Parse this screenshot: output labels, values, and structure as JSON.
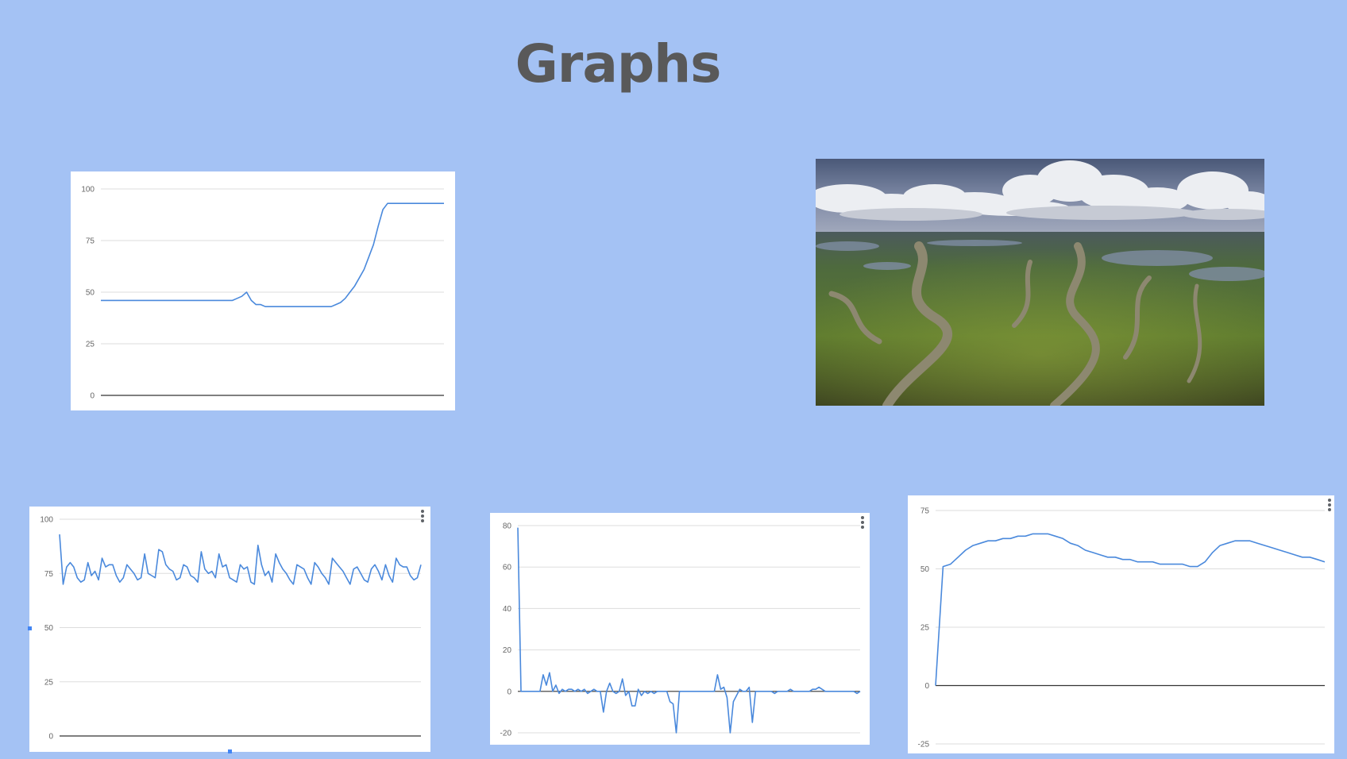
{
  "slide": {
    "title": "Graphs",
    "background": "#a4c2f4",
    "title_color": "#595959"
  },
  "chart_style": {
    "line_color": "#4a89dc",
    "grid_color": "#dddddd",
    "axis_color": "#333333",
    "tick_color": "#666666"
  },
  "chart_data": [
    {
      "type": "line",
      "ylim": [
        0,
        100
      ],
      "yticks": [
        0,
        25,
        50,
        75,
        100
      ],
      "has_menu": false,
      "series": [
        {
          "values": [
            46,
            46,
            46,
            46,
            46,
            46,
            46,
            46,
            46,
            46,
            46,
            46,
            46,
            46,
            46,
            46,
            46,
            46,
            46,
            46,
            46,
            46,
            46,
            46,
            46,
            46,
            46,
            46,
            46,
            47,
            48,
            50,
            46,
            44,
            44,
            43,
            43,
            43,
            43,
            43,
            43,
            43,
            43,
            43,
            43,
            43,
            43,
            43,
            43,
            43,
            44,
            45,
            47,
            50,
            53,
            57,
            61,
            67,
            73,
            82,
            90,
            93,
            93,
            93,
            93,
            93,
            93,
            93,
            93,
            93,
            93,
            93,
            93,
            93
          ]
        }
      ]
    },
    {
      "type": "line",
      "ylim": [
        0,
        100
      ],
      "yticks": [
        0,
        25,
        50,
        75,
        100
      ],
      "has_menu": true,
      "series": [
        {
          "values": [
            93,
            70,
            78,
            80,
            78,
            73,
            71,
            72,
            80,
            74,
            76,
            72,
            82,
            78,
            79,
            79,
            74,
            71,
            73,
            79,
            77,
            75,
            72,
            73,
            84,
            75,
            74,
            73,
            86,
            85,
            79,
            77,
            76,
            72,
            73,
            79,
            78,
            74,
            73,
            71,
            85,
            77,
            75,
            76,
            73,
            84,
            78,
            79,
            73,
            72,
            71,
            79,
            77,
            78,
            71,
            70,
            88,
            79,
            74,
            76,
            71,
            84,
            80,
            77,
            75,
            72,
            70,
            79,
            78,
            77,
            73,
            70,
            80,
            78,
            75,
            73,
            70,
            82,
            80,
            78,
            76,
            73,
            70,
            77,
            78,
            75,
            72,
            71,
            77,
            79,
            76,
            72,
            79,
            74,
            71,
            82,
            79,
            78,
            78,
            74,
            72,
            73,
            79
          ]
        }
      ]
    },
    {
      "type": "line",
      "ylim": [
        -20,
        80
      ],
      "yticks": [
        -20,
        0,
        20,
        40,
        60,
        80
      ],
      "has_menu": true,
      "series": [
        {
          "values": [
            79,
            0,
            0,
            0,
            0,
            0,
            0,
            0,
            8,
            3,
            9,
            0,
            3,
            -1,
            1,
            0,
            1,
            1,
            0,
            1,
            0,
            1,
            -1,
            0,
            1,
            0,
            0,
            -10,
            0,
            4,
            0,
            -1,
            0,
            6,
            -2,
            0,
            -7,
            -7,
            1,
            -2,
            0,
            -1,
            0,
            -1,
            0,
            0,
            0,
            0,
            -5,
            -6,
            -20,
            0,
            0,
            0,
            0,
            0,
            0,
            0,
            0,
            0,
            0,
            0,
            0,
            8,
            1,
            2,
            -3,
            -20,
            -5,
            -2,
            1,
            0,
            0,
            2,
            -15,
            0,
            0,
            0,
            0,
            0,
            0,
            -1,
            0,
            0,
            0,
            0,
            1,
            0,
            0,
            0,
            0,
            0,
            0,
            1,
            1,
            2,
            1,
            0,
            0,
            0,
            0,
            0,
            0,
            0,
            0,
            0,
            0,
            -1,
            0
          ]
        }
      ]
    },
    {
      "type": "line",
      "ylim": [
        -25,
        75
      ],
      "yticks": [
        -25,
        0,
        25,
        50,
        75
      ],
      "has_menu": true,
      "series": [
        {
          "values": [
            0,
            51,
            52,
            55,
            58,
            60,
            61,
            62,
            62,
            63,
            63,
            64,
            64,
            65,
            65,
            65,
            64,
            63,
            61,
            60,
            58,
            57,
            56,
            55,
            55,
            54,
            54,
            53,
            53,
            53,
            52,
            52,
            52,
            52,
            51,
            51,
            53,
            57,
            60,
            61,
            62,
            62,
            62,
            61,
            60,
            59,
            58,
            57,
            56,
            55,
            55,
            54,
            53
          ]
        }
      ]
    }
  ]
}
